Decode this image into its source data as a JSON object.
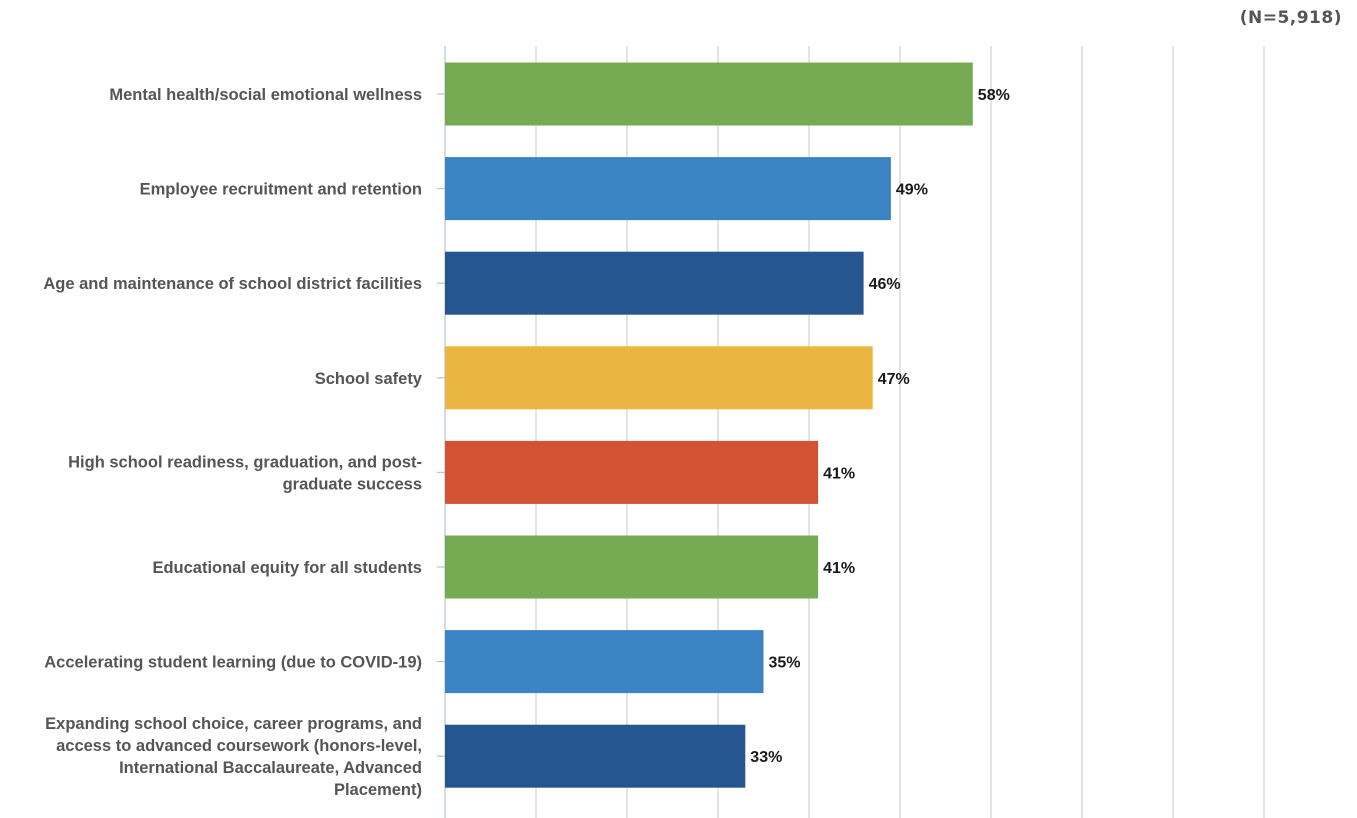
{
  "sample_note": "(N=5,918)",
  "chart_data": {
    "type": "bar",
    "orientation": "horizontal",
    "title": "",
    "xlabel": "",
    "ylabel": "",
    "xlim": [
      0,
      90
    ],
    "grid": true,
    "categories": [
      [
        "Mental health/social emotional wellness"
      ],
      [
        "Employee recruitment and retention"
      ],
      [
        "Age and maintenance of school district facilities"
      ],
      [
        "School safety"
      ],
      [
        "High school readiness, graduation, and post-",
        "graduate success"
      ],
      [
        "Educational equity for all students"
      ],
      [
        "Accelerating student learning (due to COVID-19)"
      ],
      [
        "Expanding school choice, career programs, and",
        "access to advanced coursework (honors-level,",
        "International Baccalaureate, Advanced",
        "Placement)"
      ]
    ],
    "values": [
      58,
      49,
      46,
      47,
      41,
      41,
      35,
      33
    ],
    "value_labels": [
      "58%",
      "49%",
      "46%",
      "47%",
      "41%",
      "41%",
      "35%",
      "33%"
    ],
    "colors": [
      "#76ab54",
      "#3a84c4",
      "#26568f",
      "#e8b641",
      "#d35233",
      "#76ab54",
      "#3a84c4",
      "#26568f"
    ]
  }
}
